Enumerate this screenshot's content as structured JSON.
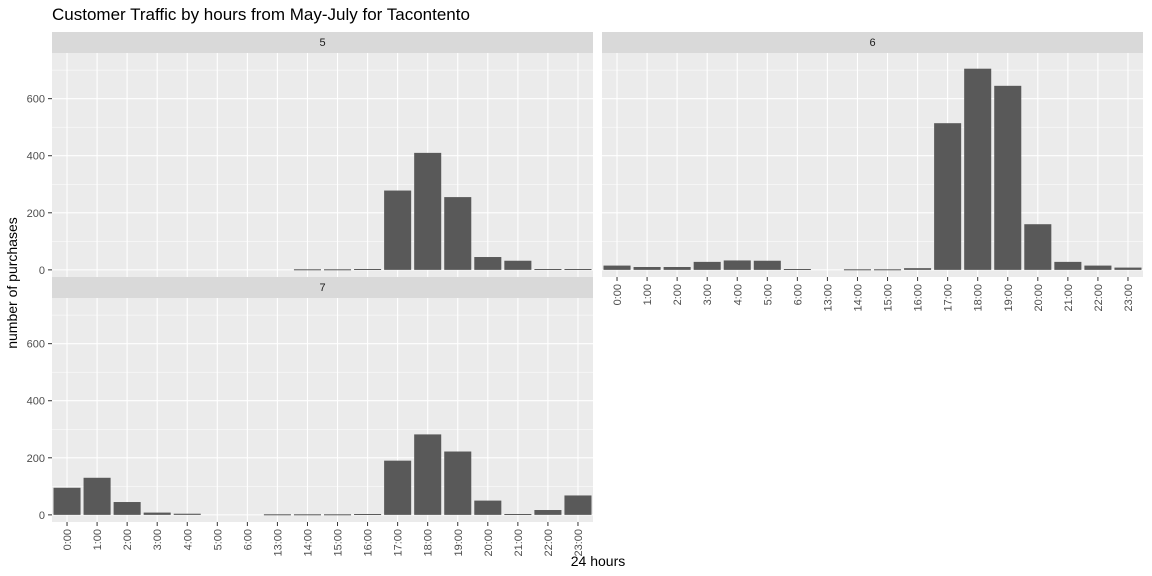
{
  "chart_data": {
    "type": "bar",
    "title": "Customer Traffic by hours from May-July for Tacontento",
    "xlabel": "24 hours",
    "ylabel": "number of purchases",
    "ylim": [
      -25,
      760
    ],
    "y_ticks": [
      0,
      200,
      400,
      600
    ],
    "grid": true,
    "facet_layout": "wrap",
    "categories": [
      "0:00",
      "1:00",
      "2:00",
      "3:00",
      "4:00",
      "5:00",
      "6:00",
      "13:00",
      "14:00",
      "15:00",
      "16:00",
      "17:00",
      "18:00",
      "19:00",
      "20:00",
      "21:00",
      "22:00",
      "23:00"
    ],
    "panels": [
      {
        "label": "5",
        "values": [
          null,
          null,
          null,
          null,
          null,
          null,
          null,
          null,
          2,
          2,
          3,
          278,
          410,
          255,
          45,
          32,
          3,
          3
        ]
      },
      {
        "label": "6",
        "values": [
          15,
          10,
          10,
          28,
          33,
          32,
          3,
          null,
          2,
          2,
          6,
          514,
          705,
          645,
          160,
          28,
          15,
          8
        ]
      },
      {
        "label": "7",
        "values": [
          95,
          130,
          45,
          8,
          4,
          null,
          null,
          2,
          2,
          2,
          3,
          190,
          282,
          222,
          50,
          3,
          17,
          68
        ]
      }
    ],
    "bar_color": "#595959"
  }
}
